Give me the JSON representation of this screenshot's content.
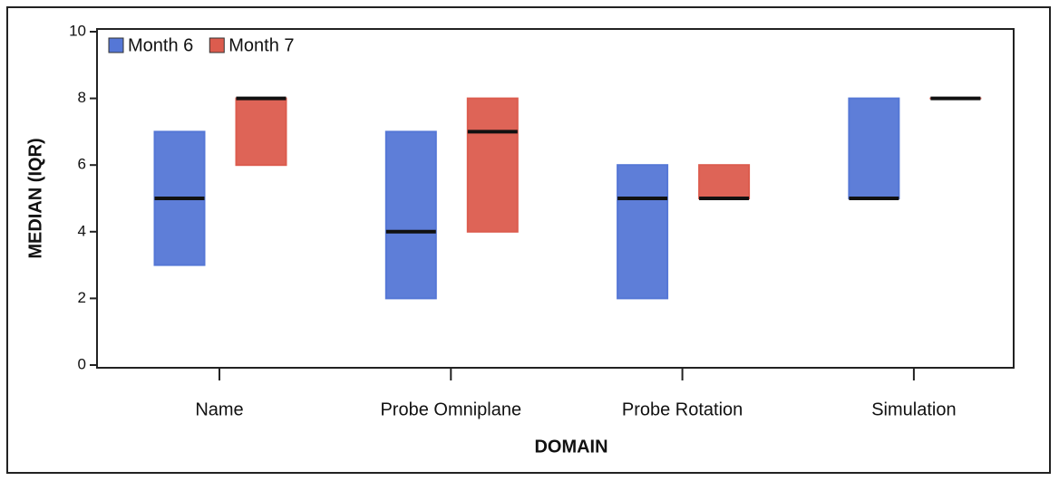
{
  "chart_data": {
    "type": "box",
    "x_label": "DOMAIN",
    "y_label": "MEDIAN (IQR)",
    "categories": [
      "Name",
      "Probe Omniplane",
      "Probe Rotation",
      "Simulation"
    ],
    "series": [
      {
        "name": "Month 6",
        "color": "#5577d6",
        "q1": [
          3,
          2,
          2,
          5
        ],
        "median": [
          5,
          4,
          5,
          5
        ],
        "q3": [
          7,
          7,
          6,
          8
        ]
      },
      {
        "name": "Month 7",
        "color": "#dc5c4e",
        "q1": [
          6,
          4,
          5,
          8
        ],
        "median": [
          8,
          7,
          5,
          8
        ],
        "q3": [
          8,
          8,
          6,
          8
        ]
      }
    ],
    "ylim": [
      0,
      10
    ],
    "yticks": [
      0,
      2,
      4,
      6,
      8,
      10
    ],
    "legend": "upper left"
  }
}
